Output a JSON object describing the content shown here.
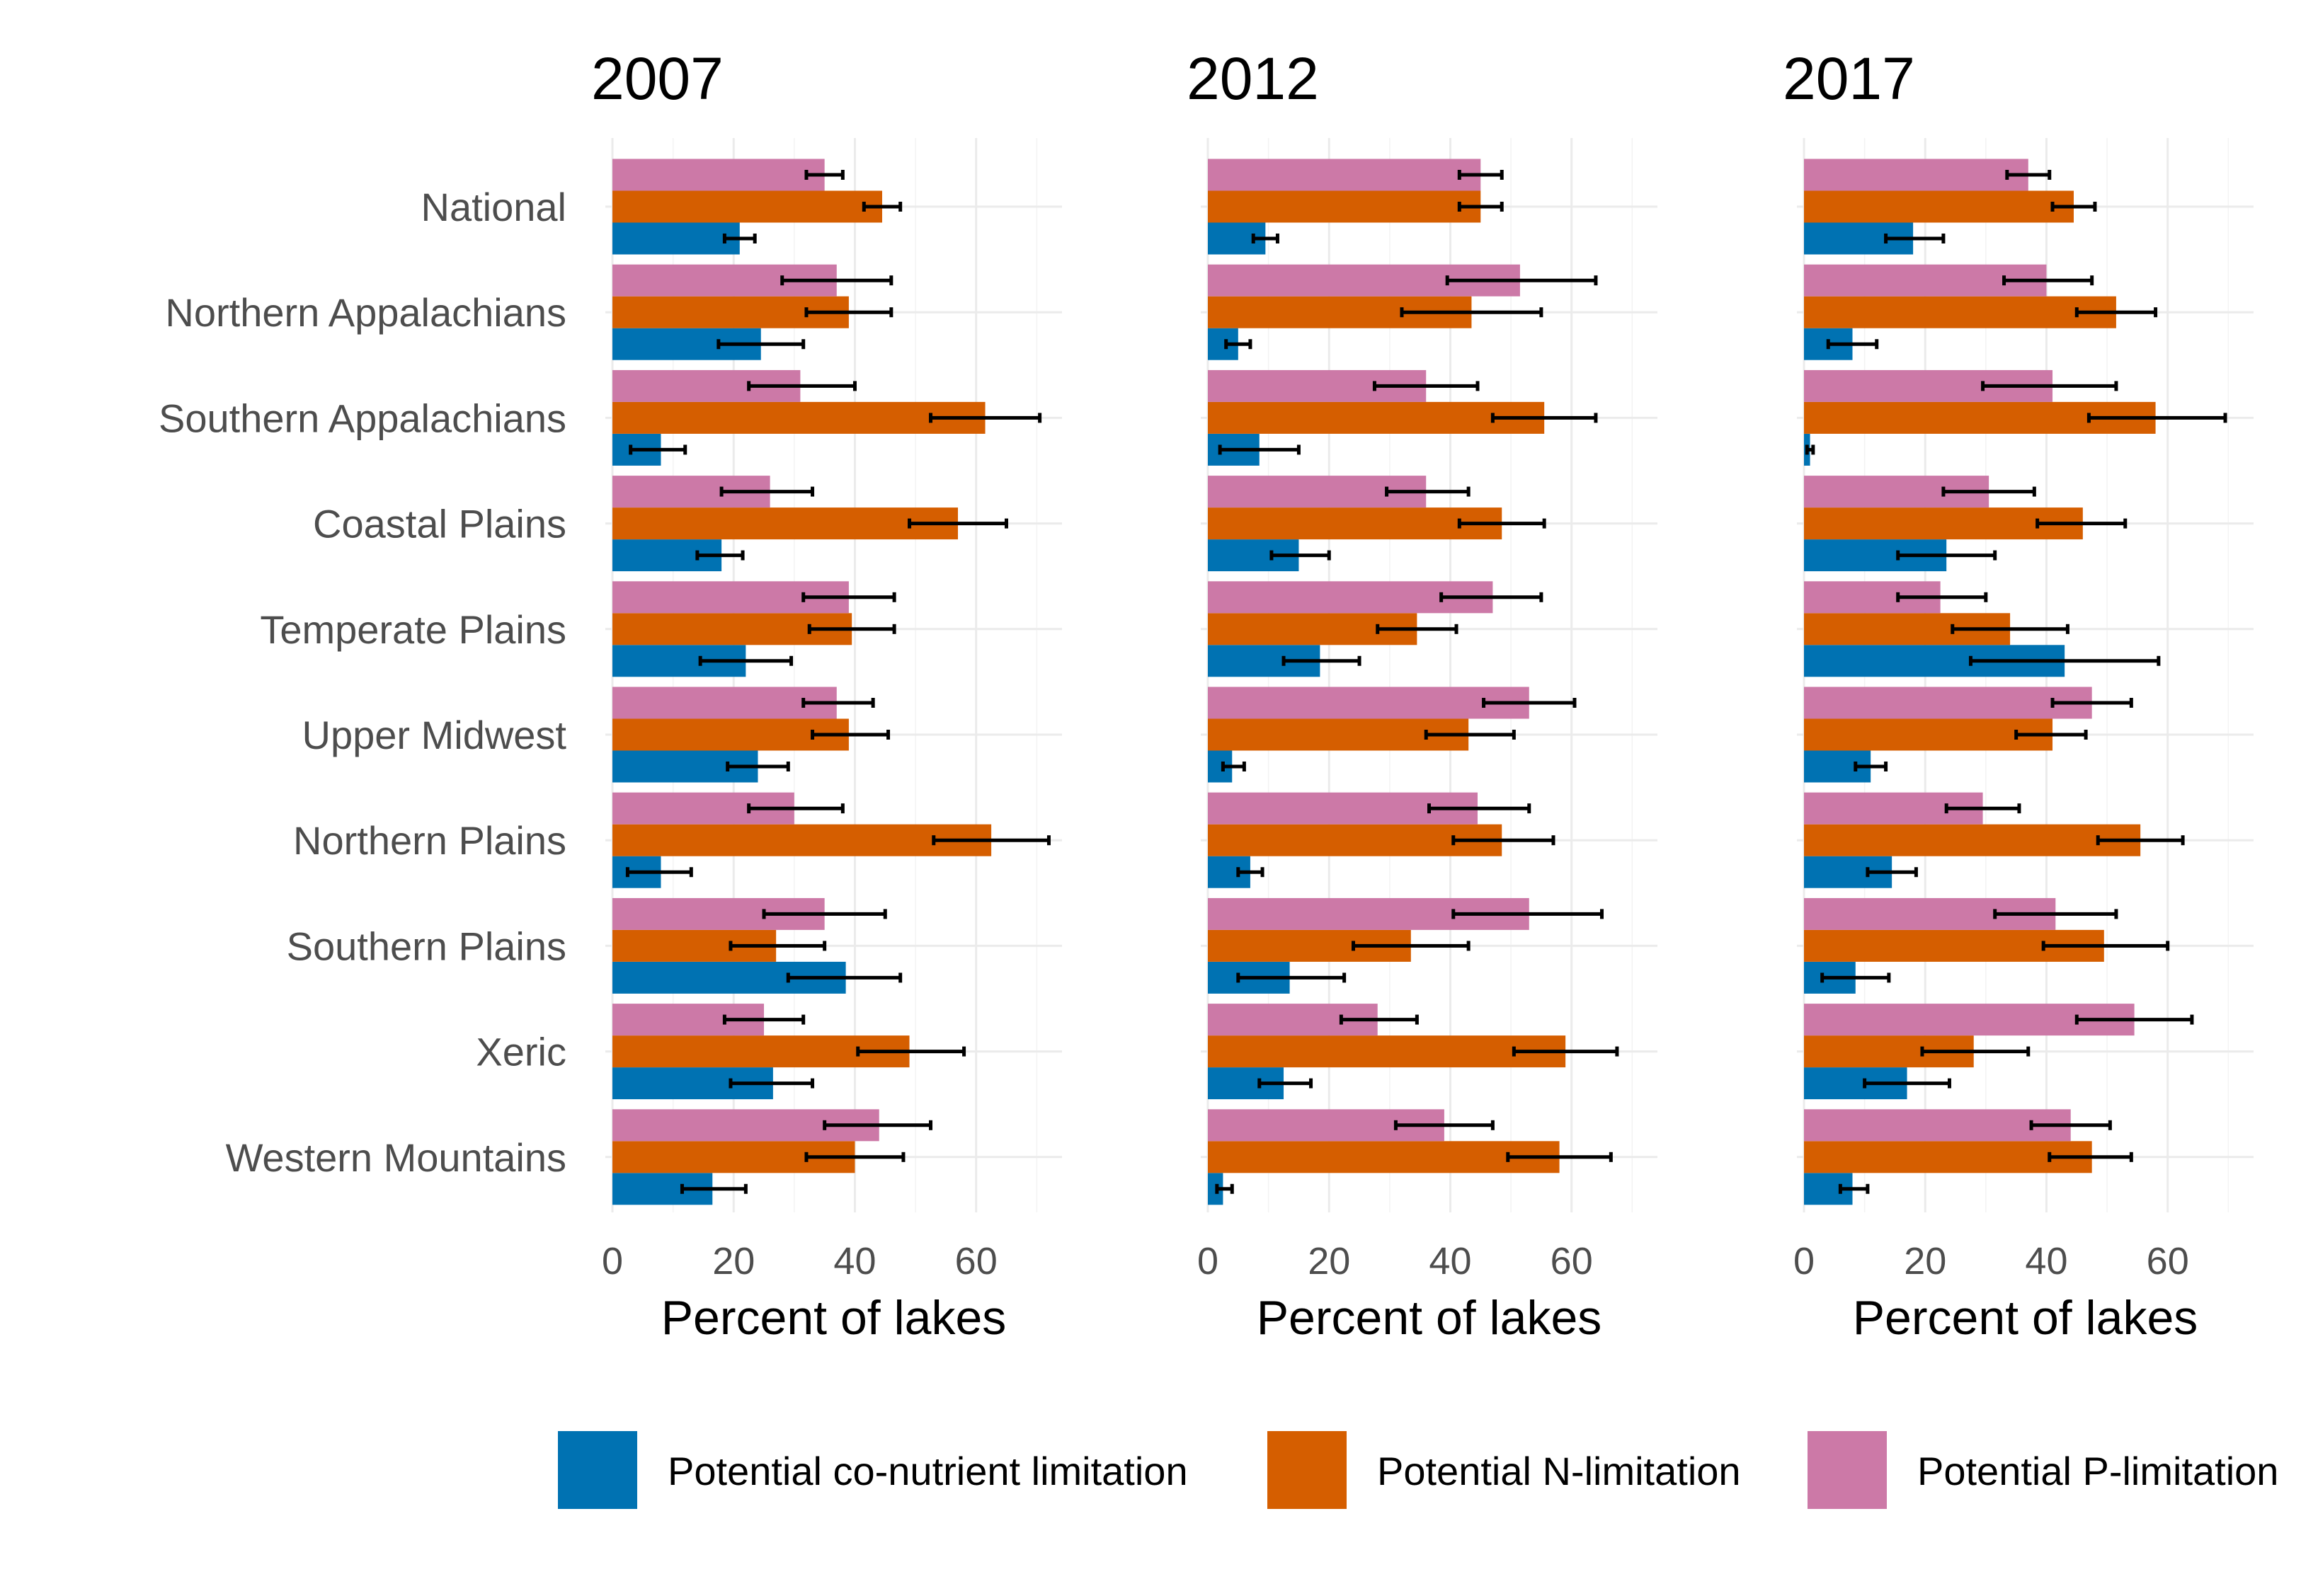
{
  "chart_data": {
    "type": "bar",
    "orientation": "horizontal",
    "xlabel": "Percent of lakes",
    "xlim": [
      0,
      73
    ],
    "xticks": [
      0,
      20,
      40,
      60
    ],
    "grid": true,
    "legend_position": "bottom",
    "categories": [
      "National",
      "Northern Appalachians",
      "Southern Appalachians",
      "Coastal Plains",
      "Temperate Plains",
      "Upper Midwest",
      "Northern Plains",
      "Southern Plains",
      "Xeric",
      "Western Mountains"
    ],
    "series": [
      {
        "name": "Potential co-nutrient limitation",
        "color": "#0072B2"
      },
      {
        "name": "Potential N-limitation",
        "color": "#D55E00"
      },
      {
        "name": "Potential P-limitation",
        "color": "#CC79A7"
      }
    ],
    "panels": [
      {
        "title": "2007",
        "values": [
          [
            21,
            44.5,
            35
          ],
          [
            24.5,
            39,
            37
          ],
          [
            8,
            61.5,
            31
          ],
          [
            18,
            57,
            26
          ],
          [
            22,
            39.5,
            39
          ],
          [
            24,
            39,
            37
          ],
          [
            8,
            62.5,
            30
          ],
          [
            38.5,
            27,
            35
          ],
          [
            26.5,
            49,
            25
          ],
          [
            16.5,
            40,
            44
          ]
        ],
        "errors": [
          [
            [
              18.5,
              23.5
            ],
            [
              41.5,
              47.5
            ],
            [
              32,
              38
            ]
          ],
          [
            [
              17.5,
              31.5
            ],
            [
              32,
              46
            ],
            [
              28,
              46
            ]
          ],
          [
            [
              3,
              12
            ],
            [
              52.5,
              70.5
            ],
            [
              22.5,
              40
            ]
          ],
          [
            [
              14,
              21.5
            ],
            [
              49,
              65
            ],
            [
              18,
              33
            ]
          ],
          [
            [
              14.5,
              29.5
            ],
            [
              32.5,
              46.5
            ],
            [
              31.5,
              46.5
            ]
          ],
          [
            [
              19,
              29
            ],
            [
              33,
              45.5
            ],
            [
              31.5,
              43
            ]
          ],
          [
            [
              2.5,
              13
            ],
            [
              53,
              72
            ],
            [
              22.5,
              38
            ]
          ],
          [
            [
              29,
              47.5
            ],
            [
              19.5,
              35
            ],
            [
              25,
              45
            ]
          ],
          [
            [
              19.5,
              33
            ],
            [
              40.5,
              58
            ],
            [
              18.5,
              31.5
            ]
          ],
          [
            [
              11.5,
              22
            ],
            [
              32,
              48
            ],
            [
              35,
              52.5
            ]
          ]
        ]
      },
      {
        "title": "2012",
        "values": [
          [
            9.5,
            45,
            45
          ],
          [
            5,
            43.5,
            51.5
          ],
          [
            8.5,
            55.5,
            36
          ],
          [
            15,
            48.5,
            36
          ],
          [
            18.5,
            34.5,
            47
          ],
          [
            4,
            43,
            53
          ],
          [
            7,
            48.5,
            44.5
          ],
          [
            13.5,
            33.5,
            53
          ],
          [
            12.5,
            59,
            28
          ],
          [
            2.5,
            58,
            39
          ]
        ],
        "errors": [
          [
            [
              7.5,
              11.5
            ],
            [
              41.5,
              48.5
            ],
            [
              41.5,
              48.5
            ]
          ],
          [
            [
              3,
              7
            ],
            [
              32,
              55
            ],
            [
              39.5,
              64
            ]
          ],
          [
            [
              2,
              15
            ],
            [
              47,
              64
            ],
            [
              27.5,
              44.5
            ]
          ],
          [
            [
              10.5,
              20
            ],
            [
              41.5,
              55.5
            ],
            [
              29.5,
              43
            ]
          ],
          [
            [
              12.5,
              25
            ],
            [
              28,
              41
            ],
            [
              38.5,
              55
            ]
          ],
          [
            [
              2.5,
              6
            ],
            [
              36,
              50.5
            ],
            [
              45.5,
              60.5
            ]
          ],
          [
            [
              5,
              9
            ],
            [
              40.5,
              57
            ],
            [
              36.5,
              53
            ]
          ],
          [
            [
              5,
              22.5
            ],
            [
              24,
              43
            ],
            [
              40.5,
              65
            ]
          ],
          [
            [
              8.5,
              17
            ],
            [
              50.5,
              67.5
            ],
            [
              22,
              34.5
            ]
          ],
          [
            [
              1.5,
              4
            ],
            [
              49.5,
              66.5
            ],
            [
              31,
              47
            ]
          ]
        ]
      },
      {
        "title": "2017",
        "values": [
          [
            18,
            44.5,
            37
          ],
          [
            8,
            51.5,
            40
          ],
          [
            1,
            58,
            41
          ],
          [
            23.5,
            46,
            30.5
          ],
          [
            43,
            34,
            22.5
          ],
          [
            11,
            41,
            47.5
          ],
          [
            14.5,
            55.5,
            29.5
          ],
          [
            8.5,
            49.5,
            41.5
          ],
          [
            17,
            28,
            54.5
          ],
          [
            8,
            47.5,
            44
          ]
        ],
        "errors": [
          [
            [
              13.5,
              23
            ],
            [
              41,
              48
            ],
            [
              33.5,
              40.5
            ]
          ],
          [
            [
              4,
              12
            ],
            [
              45,
              58
            ],
            [
              33,
              47.5
            ]
          ],
          [
            [
              0.5,
              1.5
            ],
            [
              47,
              69.5
            ],
            [
              29.5,
              51.5
            ]
          ],
          [
            [
              15.5,
              31.5
            ],
            [
              38.5,
              53
            ],
            [
              23,
              38
            ]
          ],
          [
            [
              27.5,
              58.5
            ],
            [
              24.5,
              43.5
            ],
            [
              15.5,
              30
            ]
          ],
          [
            [
              8.5,
              13.5
            ],
            [
              35,
              46.5
            ],
            [
              41,
              54
            ]
          ],
          [
            [
              10.5,
              18.5
            ],
            [
              48.5,
              62.5
            ],
            [
              23.5,
              35.5
            ]
          ],
          [
            [
              3,
              14
            ],
            [
              39.5,
              60
            ],
            [
              31.5,
              51.5
            ]
          ],
          [
            [
              10,
              24
            ],
            [
              19.5,
              37
            ],
            [
              45,
              64
            ]
          ],
          [
            [
              6,
              10.5
            ],
            [
              40.5,
              54
            ],
            [
              37.5,
              50.5
            ]
          ]
        ]
      }
    ]
  }
}
